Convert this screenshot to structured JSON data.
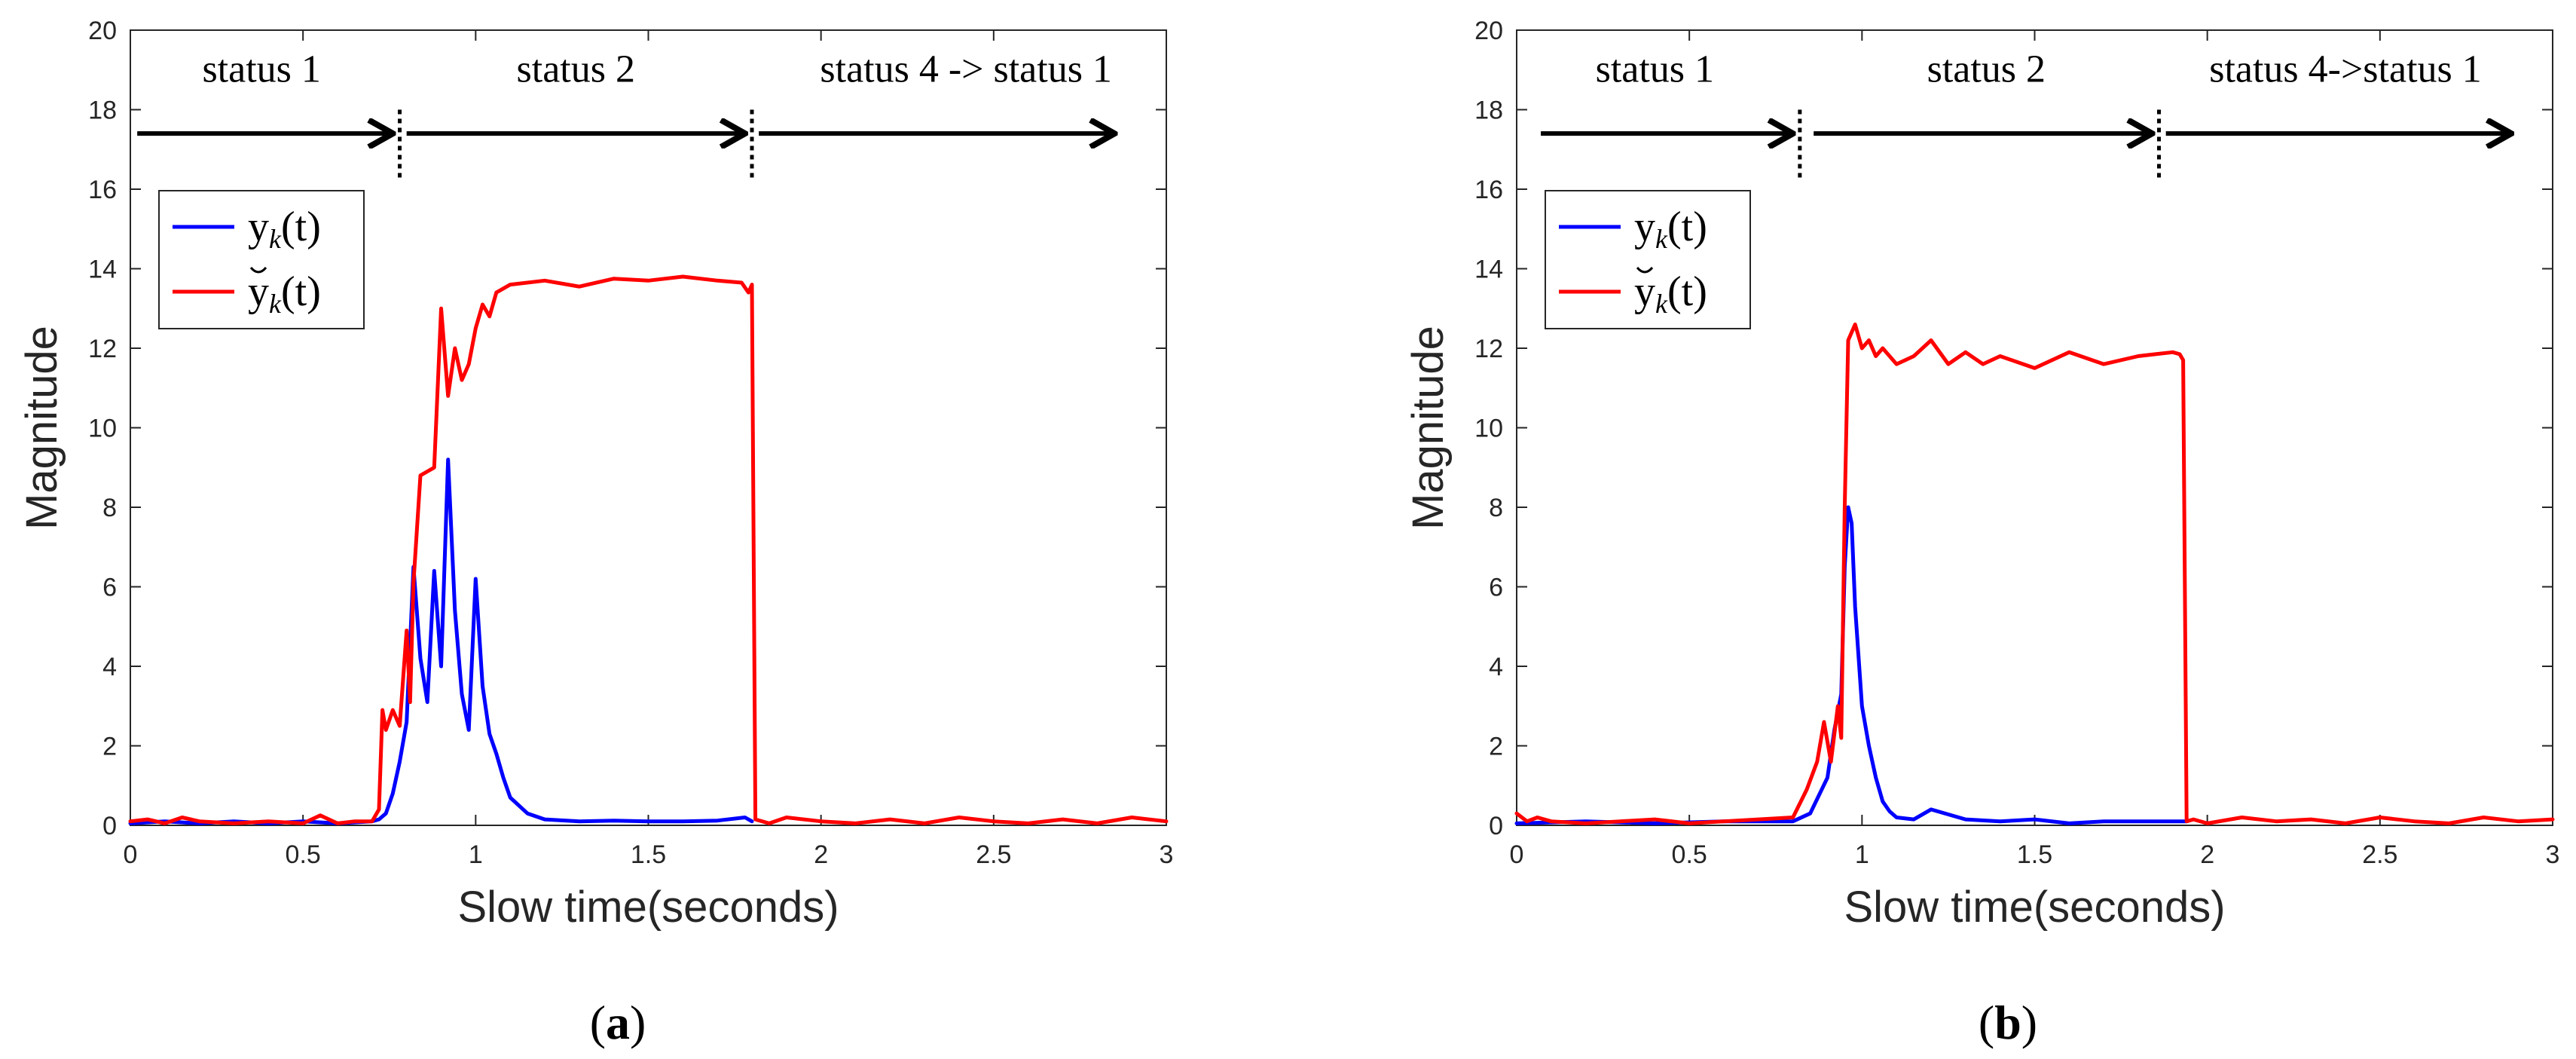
{
  "figure": {
    "panels": [
      {
        "id": "a",
        "caption_open": "(",
        "caption_letter": "a",
        "caption_close": ")"
      },
      {
        "id": "b",
        "caption_open": "(",
        "caption_letter": "b",
        "caption_close": ")"
      }
    ]
  },
  "chart_data": [
    {
      "type": "line",
      "panel": "a",
      "xlabel": "Slow time(seconds)",
      "ylabel": "Magnitude",
      "xlim": [
        0,
        3
      ],
      "ylim": [
        0,
        20
      ],
      "xticks": [
        0,
        0.5,
        1,
        1.5,
        2,
        2.5,
        3
      ],
      "xtick_labels": [
        "0",
        "0.5",
        "1",
        "1.5",
        "2",
        "2.5",
        "3"
      ],
      "yticks": [
        0,
        2,
        4,
        6,
        8,
        10,
        12,
        14,
        16,
        18,
        20
      ],
      "ytick_labels": [
        "0",
        "2",
        "4",
        "6",
        "8",
        "10",
        "12",
        "14",
        "16",
        "18",
        "20"
      ],
      "grid": false,
      "legend": {
        "placement": "upper-left",
        "entries": [
          {
            "base": "y",
            "sub": "k",
            "arg": "(t)",
            "accent": false,
            "color": "#0000ff"
          },
          {
            "base": "y",
            "sub": "k",
            "arg": "(t)",
            "accent": true,
            "color": "#ff0000"
          }
        ]
      },
      "status_annotations": {
        "y": 17.4,
        "boundaries": [
          0.78,
          1.8
        ],
        "segments": [
          {
            "label": "status 1",
            "x_start": 0.02,
            "x_end": 0.76,
            "label_x": 0.38,
            "label_y": 18.7
          },
          {
            "label": "status 2",
            "x_start": 0.8,
            "x_end": 1.78,
            "label_x": 1.29,
            "label_y": 18.7
          },
          {
            "label": "status 4 -> status 1",
            "x_start": 1.82,
            "x_end": 2.85,
            "label_x": 2.42,
            "label_y": 18.7
          }
        ]
      },
      "series": [
        {
          "name": "y_k(t)",
          "color": "#0000ff",
          "x": [
            0.0,
            0.1,
            0.2,
            0.3,
            0.4,
            0.5,
            0.6,
            0.7,
            0.72,
            0.74,
            0.76,
            0.78,
            0.8,
            0.82,
            0.84,
            0.86,
            0.88,
            0.9,
            0.92,
            0.94,
            0.96,
            0.98,
            1.0,
            1.02,
            1.04,
            1.06,
            1.08,
            1.1,
            1.15,
            1.2,
            1.3,
            1.4,
            1.5,
            1.6,
            1.7,
            1.78,
            1.8
          ],
          "values": [
            0.05,
            0.1,
            0.05,
            0.1,
            0.05,
            0.1,
            0.05,
            0.1,
            0.15,
            0.3,
            0.8,
            1.6,
            2.6,
            6.5,
            4.2,
            3.1,
            6.4,
            4.0,
            9.2,
            5.4,
            3.3,
            2.4,
            6.2,
            3.5,
            2.3,
            1.8,
            1.2,
            0.7,
            0.3,
            0.15,
            0.1,
            0.12,
            0.1,
            0.1,
            0.12,
            0.2,
            0.1
          ]
        },
        {
          "name": "y̆_k(t)",
          "color": "#ff0000",
          "x": [
            0.0,
            0.05,
            0.1,
            0.15,
            0.2,
            0.3,
            0.4,
            0.5,
            0.55,
            0.6,
            0.65,
            0.7,
            0.72,
            0.73,
            0.74,
            0.76,
            0.78,
            0.8,
            0.81,
            0.82,
            0.84,
            0.86,
            0.88,
            0.9,
            0.92,
            0.94,
            0.96,
            0.98,
            1.0,
            1.02,
            1.04,
            1.06,
            1.1,
            1.2,
            1.3,
            1.4,
            1.5,
            1.6,
            1.7,
            1.77,
            1.79,
            1.8,
            1.81,
            1.85,
            1.9,
            2.0,
            2.1,
            2.2,
            2.3,
            2.4,
            2.5,
            2.6,
            2.7,
            2.8,
            2.9,
            3.0
          ],
          "values": [
            0.1,
            0.15,
            0.05,
            0.2,
            0.1,
            0.05,
            0.1,
            0.05,
            0.25,
            0.05,
            0.1,
            0.1,
            0.4,
            2.9,
            2.4,
            2.9,
            2.5,
            4.9,
            3.1,
            6.1,
            8.8,
            8.9,
            9.0,
            13.0,
            10.8,
            12.0,
            11.2,
            11.6,
            12.5,
            13.1,
            12.8,
            13.4,
            13.6,
            13.7,
            13.55,
            13.75,
            13.7,
            13.8,
            13.7,
            13.65,
            13.4,
            13.6,
            0.15,
            0.05,
            0.2,
            0.1,
            0.05,
            0.15,
            0.05,
            0.2,
            0.1,
            0.05,
            0.15,
            0.05,
            0.2,
            0.1
          ]
        }
      ]
    },
    {
      "type": "line",
      "panel": "b",
      "xlabel": "Slow time(seconds)",
      "ylabel": "Magnitude",
      "xlim": [
        0,
        3
      ],
      "ylim": [
        0,
        20
      ],
      "xticks": [
        0,
        0.5,
        1,
        1.5,
        2,
        2.5,
        3
      ],
      "xtick_labels": [
        "0",
        "0.5",
        "1",
        "1.5",
        "2",
        "2.5",
        "3"
      ],
      "yticks": [
        0,
        2,
        4,
        6,
        8,
        10,
        12,
        14,
        16,
        18,
        20
      ],
      "ytick_labels": [
        "0",
        "2",
        "4",
        "6",
        "8",
        "10",
        "12",
        "14",
        "16",
        "18",
        "20"
      ],
      "grid": false,
      "legend": {
        "placement": "upper-left",
        "entries": [
          {
            "base": "y",
            "sub": "k",
            "arg": "(t)",
            "accent": false,
            "color": "#0000ff"
          },
          {
            "base": "y",
            "sub": "k",
            "arg": "(t)",
            "accent": true,
            "color": "#ff0000"
          }
        ]
      },
      "status_annotations": {
        "y": 17.4,
        "boundaries": [
          0.82,
          1.86
        ],
        "segments": [
          {
            "label": "status 1",
            "x_start": 0.07,
            "x_end": 0.8,
            "label_x": 0.4,
            "label_y": 18.7
          },
          {
            "label": "status 2",
            "x_start": 0.86,
            "x_end": 1.84,
            "label_x": 1.36,
            "label_y": 18.7
          },
          {
            "label": "status 4->status 1",
            "x_start": 1.88,
            "x_end": 2.88,
            "label_x": 2.4,
            "label_y": 18.7
          }
        ]
      },
      "series": [
        {
          "name": "y_k(t)",
          "color": "#0000ff",
          "x": [
            0.0,
            0.2,
            0.4,
            0.6,
            0.8,
            0.85,
            0.9,
            0.92,
            0.94,
            0.95,
            0.96,
            0.97,
            0.98,
            1.0,
            1.02,
            1.04,
            1.06,
            1.08,
            1.1,
            1.15,
            1.2,
            1.3,
            1.4,
            1.5,
            1.6,
            1.7,
            1.8,
            1.9,
            1.94
          ],
          "values": [
            0.05,
            0.1,
            0.05,
            0.1,
            0.1,
            0.3,
            1.2,
            2.4,
            3.3,
            6.5,
            8.0,
            7.6,
            5.5,
            3.0,
            2.0,
            1.2,
            0.6,
            0.35,
            0.2,
            0.15,
            0.4,
            0.15,
            0.1,
            0.15,
            0.05,
            0.1,
            0.1,
            0.1,
            0.1
          ]
        },
        {
          "name": "y̆_k(t)",
          "color": "#ff0000",
          "x": [
            0.0,
            0.03,
            0.06,
            0.1,
            0.2,
            0.3,
            0.4,
            0.5,
            0.6,
            0.7,
            0.8,
            0.84,
            0.87,
            0.89,
            0.91,
            0.93,
            0.94,
            0.95,
            0.96,
            0.98,
            1.0,
            1.02,
            1.04,
            1.06,
            1.1,
            1.15,
            1.2,
            1.25,
            1.3,
            1.35,
            1.4,
            1.5,
            1.6,
            1.7,
            1.8,
            1.85,
            1.9,
            1.92,
            1.93,
            1.94,
            1.96,
            2.0,
            2.1,
            2.2,
            2.3,
            2.4,
            2.5,
            2.6,
            2.7,
            2.8,
            2.9,
            3.0
          ],
          "values": [
            0.3,
            0.1,
            0.2,
            0.1,
            0.05,
            0.1,
            0.15,
            0.05,
            0.1,
            0.15,
            0.2,
            0.9,
            1.6,
            2.6,
            1.6,
            3.0,
            2.2,
            8.0,
            12.2,
            12.6,
            12.0,
            12.2,
            11.8,
            12.0,
            11.6,
            11.8,
            12.2,
            11.6,
            11.9,
            11.6,
            11.8,
            11.5,
            11.9,
            11.6,
            11.8,
            11.85,
            11.9,
            11.85,
            11.7,
            0.1,
            0.15,
            0.05,
            0.2,
            0.1,
            0.15,
            0.05,
            0.2,
            0.1,
            0.05,
            0.2,
            0.1,
            0.15
          ]
        }
      ]
    }
  ]
}
